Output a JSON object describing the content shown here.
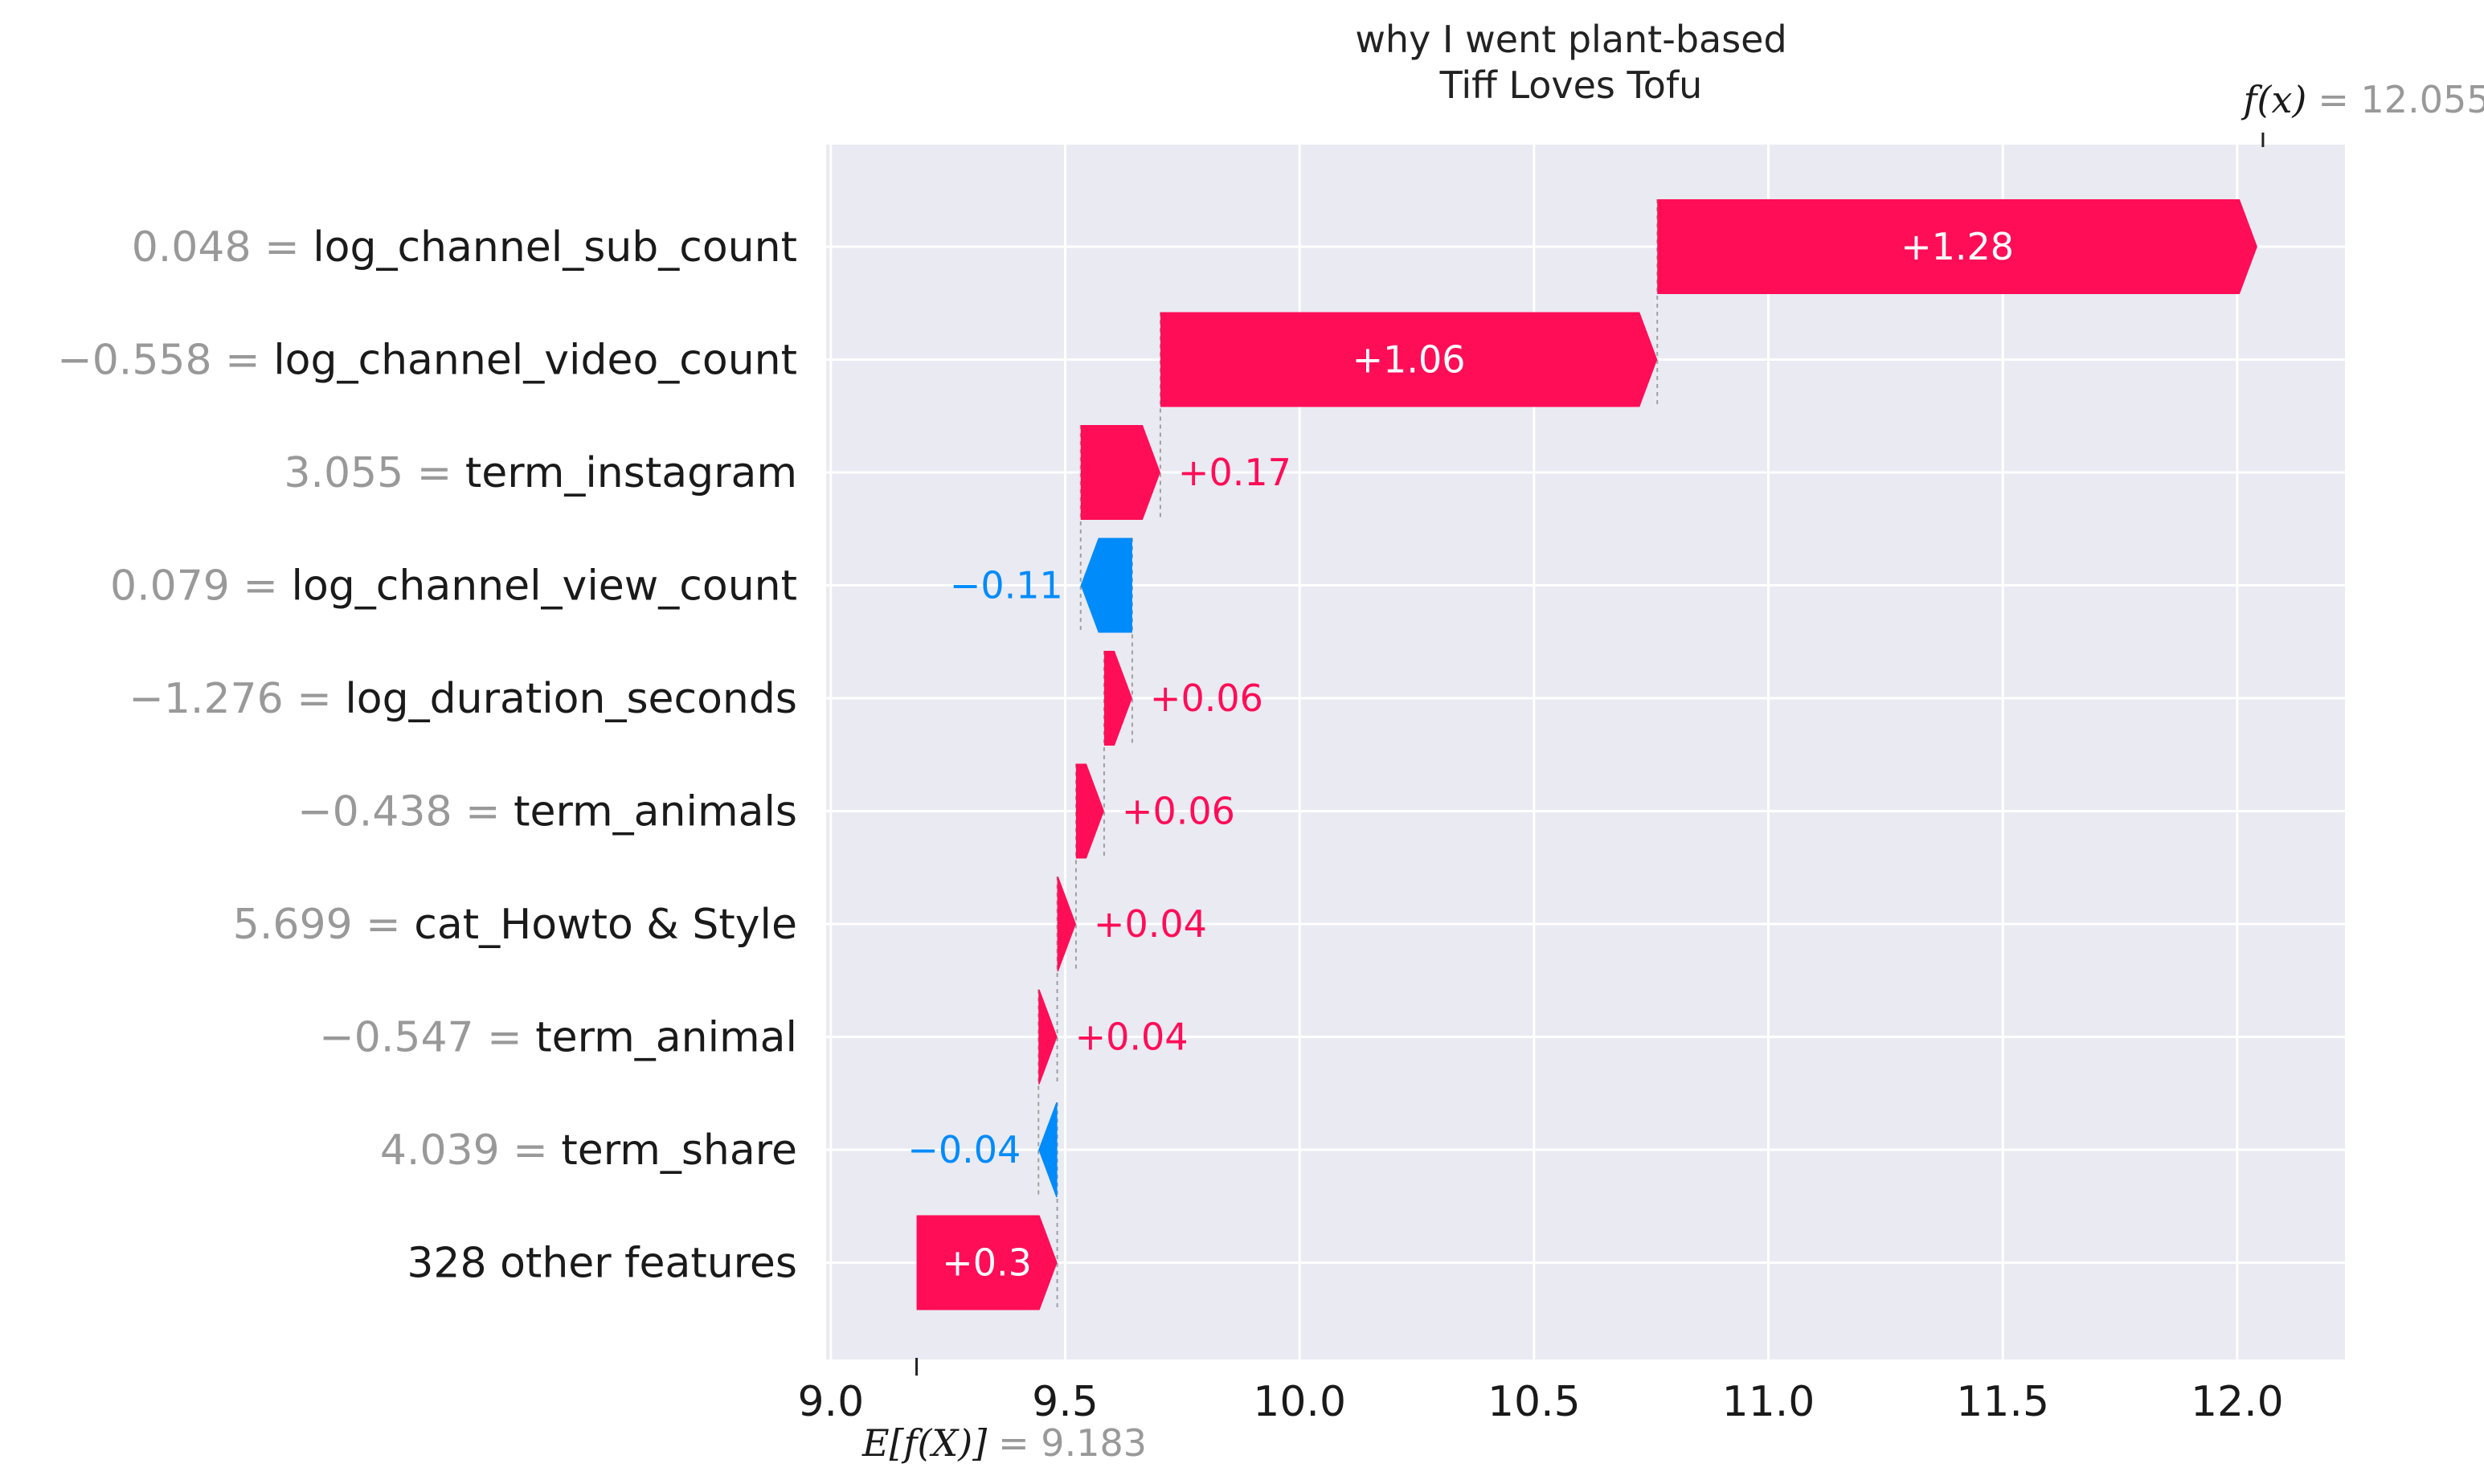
{
  "chart_data": {
    "type": "bar",
    "subtype": "waterfall",
    "title_line1": "why I went plant-based",
    "title_line2": "Tiff Loves Tofu",
    "base_value": 9.183,
    "base_label": "E[f(X)]",
    "base_value_text": "= 9.183",
    "final_value": 12.055,
    "final_label": "f(x)",
    "final_value_text": "= 12.055",
    "xlim": [
      8.99,
      12.23
    ],
    "xticks": [
      9.0,
      9.5,
      10.0,
      10.5,
      11.0,
      11.5,
      12.0
    ],
    "xtick_labels": [
      "9.0",
      "9.5",
      "10.0",
      "10.5",
      "11.0",
      "11.5",
      "12.0"
    ],
    "grid": true,
    "colors": {
      "positive": "#ff0d57",
      "negative": "#008bfb",
      "background": "#eaeaf2",
      "grid": "#ffffff"
    },
    "features": [
      {
        "value": "0.048",
        "name": "log_channel_sub_count",
        "contribution": 1.28,
        "label": "+1.28"
      },
      {
        "value": "−0.558",
        "name": "log_channel_video_count",
        "contribution": 1.06,
        "label": "+1.06"
      },
      {
        "value": "3.055",
        "name": "term_instagram",
        "contribution": 0.17,
        "label": "+0.17"
      },
      {
        "value": "0.079",
        "name": "log_channel_view_count",
        "contribution": -0.11,
        "label": "−0.11"
      },
      {
        "value": "−1.276",
        "name": "log_duration_seconds",
        "contribution": 0.06,
        "label": "+0.06"
      },
      {
        "value": "−0.438",
        "name": "term_animals",
        "contribution": 0.06,
        "label": "+0.06"
      },
      {
        "value": "5.699",
        "name": "cat_Howto & Style",
        "contribution": 0.04,
        "label": "+0.04"
      },
      {
        "value": "−0.547",
        "name": "term_animal",
        "contribution": 0.04,
        "label": "+0.04"
      },
      {
        "value": "4.039",
        "name": "term_share",
        "contribution": -0.04,
        "label": "−0.04"
      },
      {
        "value": "",
        "name": "328 other features",
        "contribution": 0.3,
        "label": "+0.3"
      }
    ]
  }
}
